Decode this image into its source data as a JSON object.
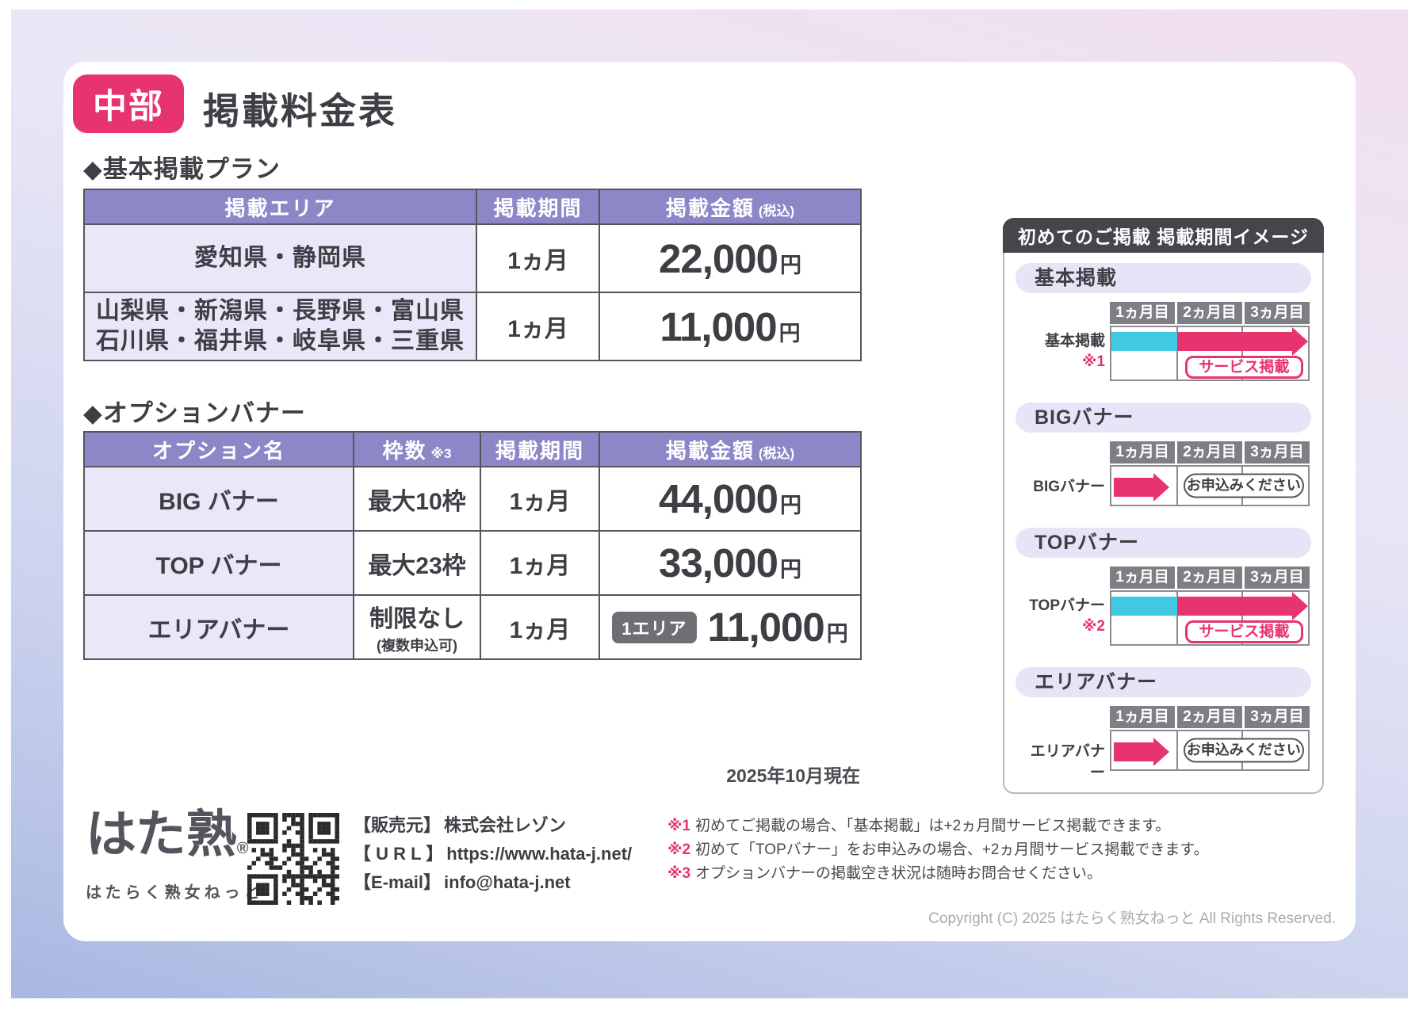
{
  "page": {
    "region_badge": "中部",
    "title": "掲載料金表",
    "as_of": "2025年10月現在",
    "copyright": "Copyright (C) 2025 はたらく熟女ねっと All Rights Reserved."
  },
  "basic_plan": {
    "heading": "◆基本掲載プラン",
    "headers": {
      "area": "掲載エリア",
      "period": "掲載期間",
      "price": "掲載金額",
      "price_note": "(税込)"
    },
    "rows": [
      {
        "area_lines": [
          "愛知県・静岡県"
        ],
        "period": "1ヵ月",
        "price": "22,000",
        "unit": "円"
      },
      {
        "area_lines": [
          "山梨県・新潟県・長野県・富山県",
          "石川県・福井県・岐阜県・三重県"
        ],
        "period": "1ヵ月",
        "price": "11,000",
        "unit": "円"
      }
    ]
  },
  "option_banner": {
    "heading": "◆オプションバナー",
    "headers": {
      "name": "オプション名",
      "slots": "枠数",
      "slots_note": "※3",
      "period": "掲載期間",
      "price": "掲載金額",
      "price_note": "(税込)"
    },
    "rows": [
      {
        "name": "BIG バナー",
        "slots": "最大10枠",
        "slots_sub": "",
        "period": "1ヵ月",
        "badge": "",
        "price": "44,000",
        "unit": "円"
      },
      {
        "name": "TOP バナー",
        "slots": "最大23枠",
        "slots_sub": "",
        "period": "1ヵ月",
        "badge": "",
        "price": "33,000",
        "unit": "円"
      },
      {
        "name": "エリアバナー",
        "slots": "制限なし",
        "slots_sub": "(複数申込可)",
        "period": "1ヵ月",
        "badge": "1エリア",
        "price": "11,000",
        "unit": "円"
      }
    ]
  },
  "schedule_panel": {
    "title": "初めてのご掲載 掲載期間イメージ",
    "months": [
      "1ヵ月目",
      "2ヵ月目",
      "3ヵ月目"
    ],
    "sections": [
      {
        "pill": "基本掲載",
        "row_label": "基本掲載",
        "row_note": "※1",
        "type": "service",
        "tag": "サービス掲載"
      },
      {
        "pill": "BIGバナー",
        "row_label": "BIGバナー",
        "row_note": "",
        "type": "apply",
        "tag": "お申込みください"
      },
      {
        "pill": "TOPバナー",
        "row_label": "TOPバナー",
        "row_note": "※2",
        "type": "service",
        "tag": "サービス掲載"
      },
      {
        "pill": "エリアバナー",
        "row_label": "エリアバナー",
        "row_note": "",
        "type": "apply",
        "tag": "お申込みください"
      }
    ]
  },
  "footer": {
    "logo_main": "はた熟",
    "logo_reg": "®",
    "logo_sub": "はたらく熟女ねっと",
    "contact": [
      {
        "label": "【販売元】",
        "value": "株式会社レゾン"
      },
      {
        "label": "【 U R L 】",
        "value": "https://www.hata-j.net/"
      },
      {
        "label": "【E-mail】",
        "value": "info@hata-j.net"
      }
    ],
    "notes": [
      {
        "marker": "※1",
        "text": "初めてご掲載の場合、「基本掲載」は+2ヵ月間サービス掲載できます。"
      },
      {
        "marker": "※2",
        "text": "初めて「TOPバナー」をお申込みの場合、+2ヵ月間サービス掲載できます。"
      },
      {
        "marker": "※3",
        "text": "オプションバナーの掲載空き状況は随時お問合せください。"
      }
    ]
  },
  "colors": {
    "accent_pink": "#e8346e",
    "header_purple": "#8d87c8",
    "cell_lavender": "#e9e7f8",
    "cyan": "#3fc9e2",
    "dark": "#45454b"
  }
}
